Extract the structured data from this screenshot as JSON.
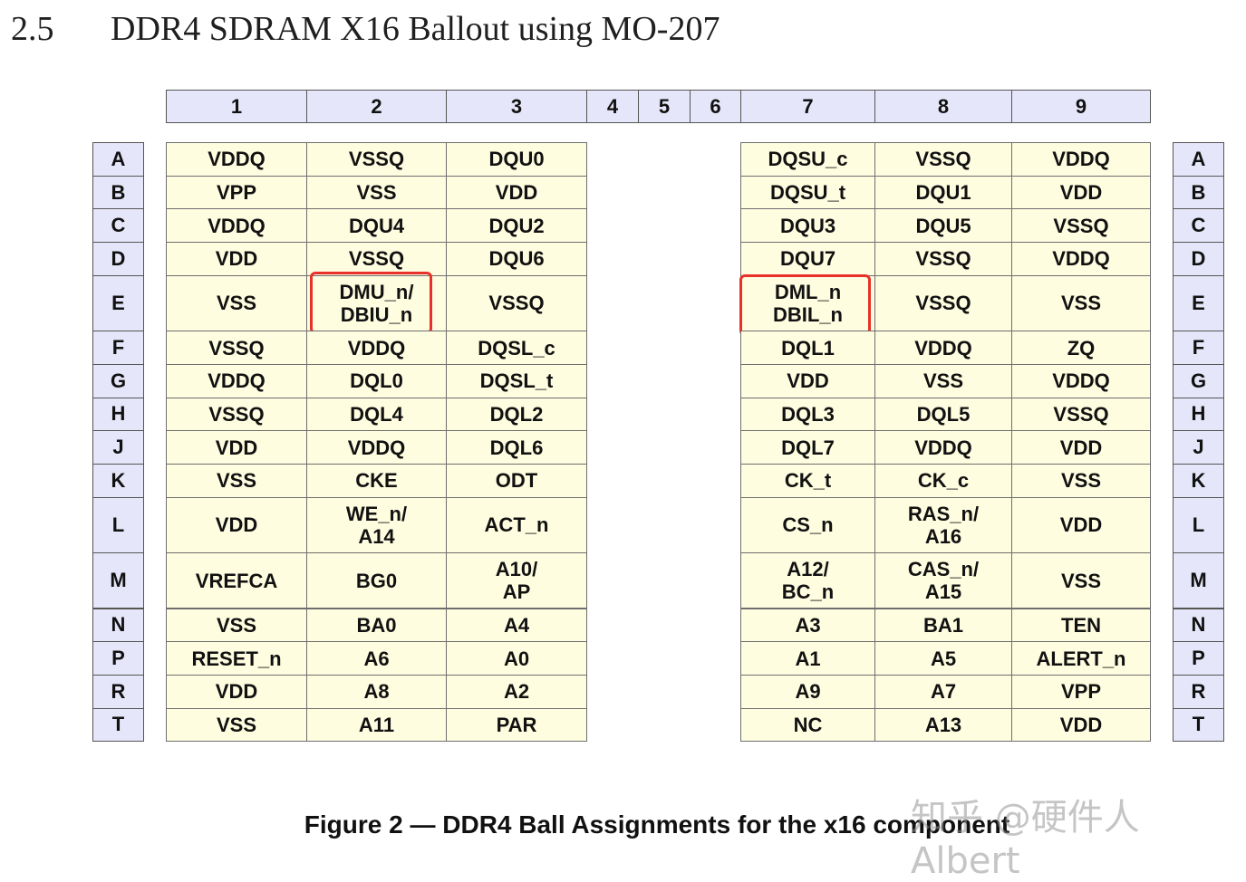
{
  "section": {
    "number": "2.5",
    "title": "DDR4 SDRAM X16 Ballout using MO-207"
  },
  "columns": [
    "1",
    "2",
    "3",
    "4",
    "5",
    "6",
    "7",
    "8",
    "9"
  ],
  "rows": [
    {
      "label": "A",
      "left": [
        "VDDQ",
        "VSSQ",
        "DQU0"
      ],
      "right": [
        "DQSU_c",
        "VSSQ",
        "VDDQ"
      ]
    },
    {
      "label": "B",
      "left": [
        "VPP",
        "VSS",
        "VDD"
      ],
      "right": [
        "DQSU_t",
        "DQU1",
        "VDD"
      ]
    },
    {
      "label": "C",
      "left": [
        "VDDQ",
        "DQU4",
        "DQU2"
      ],
      "right": [
        "DQU3",
        "DQU5",
        "VSSQ"
      ]
    },
    {
      "label": "D",
      "left": [
        "VDD",
        "VSSQ",
        "DQU6"
      ],
      "right": [
        "DQU7",
        "VSSQ",
        "VDDQ"
      ]
    },
    {
      "label": "E",
      "left": [
        "VSS",
        "DMU_n/\nDBIU_n",
        "VSSQ"
      ],
      "right": [
        "DML_n\nDBIL_n",
        "VSSQ",
        "VSS"
      ]
    },
    {
      "label": "F",
      "left": [
        "VSSQ",
        "VDDQ",
        "DQSL_c"
      ],
      "right": [
        "DQL1",
        "VDDQ",
        "ZQ"
      ]
    },
    {
      "label": "G",
      "left": [
        "VDDQ",
        "DQL0",
        "DQSL_t"
      ],
      "right": [
        "VDD",
        "VSS",
        "VDDQ"
      ]
    },
    {
      "label": "H",
      "left": [
        "VSSQ",
        "DQL4",
        "DQL2"
      ],
      "right": [
        "DQL3",
        "DQL5",
        "VSSQ"
      ]
    },
    {
      "label": "J",
      "left": [
        "VDD",
        "VDDQ",
        "DQL6"
      ],
      "right": [
        "DQL7",
        "VDDQ",
        "VDD"
      ]
    },
    {
      "label": "K",
      "left": [
        "VSS",
        "CKE",
        "ODT"
      ],
      "right": [
        "CK_t",
        "CK_c",
        "VSS"
      ]
    },
    {
      "label": "L",
      "left": [
        "VDD",
        "WE_n/\nA14",
        "ACT_n"
      ],
      "right": [
        "CS_n",
        "RAS_n/\nA16",
        "VDD"
      ]
    },
    {
      "label": "M",
      "left": [
        "VREFCA",
        "BG0",
        "A10/\nAP"
      ],
      "right": [
        "A12/\nBC_n",
        "CAS_n/\nA15",
        "VSS"
      ]
    },
    {
      "label": "N",
      "left": [
        "VSS",
        "BA0",
        "A4"
      ],
      "right": [
        "A3",
        "BA1",
        "TEN"
      ]
    },
    {
      "label": "P",
      "left": [
        "RESET_n",
        "A6",
        "A0"
      ],
      "right": [
        "A1",
        "A5",
        "ALERT_n"
      ]
    },
    {
      "label": "R",
      "left": [
        "VDD",
        "A8",
        "A2"
      ],
      "right": [
        "A9",
        "A7",
        "VPP"
      ]
    },
    {
      "label": "T",
      "left": [
        "VSS",
        "A11",
        "PAR"
      ],
      "right": [
        "NC",
        "A13",
        "VDD"
      ]
    }
  ],
  "caption": "Figure 2 — DDR4 Ball Assignments for the x16 component",
  "watermark": "知乎 @硬件人Albert",
  "highlight_color": "#e8312a"
}
